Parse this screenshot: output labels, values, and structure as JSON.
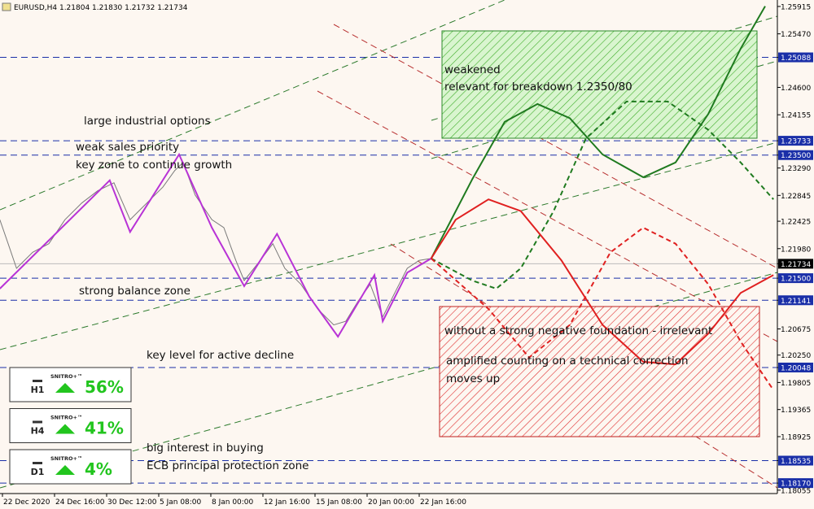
{
  "chart_data": {
    "type": "line",
    "title": "EURUSD,H4  1.21804 1.21830 1.21732 1.21734",
    "xlim": [
      -0.047,
      14.875
    ],
    "xticks": [
      {
        "value": 0,
        "label": "22 Dec 2020"
      },
      {
        "value": 1,
        "label": "24 Dec 16:00"
      },
      {
        "value": 2,
        "label": "30 Dec 12:00"
      },
      {
        "value": 3,
        "label": "5 Jan 08:00"
      },
      {
        "value": 4,
        "label": "8 Jan 00:00"
      },
      {
        "value": 5,
        "label": "12 Jan 16:00"
      },
      {
        "value": 6,
        "label": "15 Jan 08:00"
      },
      {
        "value": 7,
        "label": "20 Jan 00:00"
      },
      {
        "value": 8,
        "label": "22 Jan 16:00"
      }
    ],
    "ylim": [
      1.18,
      1.2602
    ],
    "yticks": [
      1.25915,
      {
        "value": 1.2547,
        "label": "1.25470"
      },
      1.25088,
      {
        "value": 1.246,
        "label": "1.24600"
      },
      1.24155,
      1.23733,
      {
        "value": 1.235,
        "label": "1.23500"
      },
      {
        "value": 1.2329,
        "label": "1.23290"
      },
      1.22845,
      1.22425,
      {
        "value": 1.2198,
        "label": "1.21980"
      },
      1.21734,
      {
        "value": 1.215,
        "label": "1.21500"
      },
      1.21141,
      1.20675,
      {
        "value": 1.2025,
        "label": "1.20250"
      },
      1.20048,
      1.19805,
      1.19365,
      1.18925,
      1.18535,
      {
        "value": 1.1817,
        "label": "1.18170"
      },
      1.18055
    ],
    "levels": [
      1.25088,
      1.23733,
      1.235,
      1.215,
      1.21141,
      1.20048,
      1.18535,
      1.1817
    ],
    "current": 1.21734,
    "series": [
      {
        "color": "#7a7a7a",
        "width": 1,
        "dash": false,
        "x": [
          -0.05,
          0.11,
          0.27,
          0.58,
          0.89,
          1.2,
          1.52,
          1.83,
          2.14,
          2.45,
          2.77,
          3.08,
          3.31,
          3.47,
          3.7,
          4.02,
          4.25,
          4.48,
          4.64,
          4.95,
          5.19,
          5.42,
          5.73,
          6.05,
          6.36,
          6.59,
          6.83,
          7.06,
          7.3,
          7.53,
          7.77,
          8.0,
          8.23
        ],
        "values": [
          1.2245,
          1.2206,
          1.2166,
          1.2192,
          1.2206,
          1.2245,
          1.2272,
          1.2292,
          1.2305,
          1.2245,
          1.2272,
          1.2298,
          1.2325,
          1.2338,
          1.2285,
          1.2245,
          1.2232,
          1.2179,
          1.2146,
          1.2179,
          1.2206,
          1.2166,
          1.214,
          1.21,
          1.2074,
          1.208,
          1.2113,
          1.214,
          1.2087,
          1.2126,
          1.2166,
          1.2179,
          1.2182
        ]
      },
      {
        "color": "#b833d6",
        "width": 2,
        "dash": false,
        "x": [
          -0.05,
          2.06,
          2.45,
          3.39,
          4.02,
          4.64,
          5.27,
          5.89,
          6.44,
          7.14,
          7.3,
          7.77,
          8.23
        ],
        "values": [
          1.2133,
          1.2309,
          1.2225,
          1.2351,
          1.2232,
          1.2137,
          1.2222,
          1.212,
          1.2055,
          1.2155,
          1.208,
          1.2159,
          1.2182
        ]
      },
      {
        "color": "#1f7a1f",
        "width": 2,
        "dash": false,
        "x": [
          8.23,
          9.02,
          9.64,
          10.27,
          10.89,
          11.52,
          12.3,
          12.92,
          13.55,
          14.17,
          14.64
        ],
        "values": [
          1.2182,
          1.2311,
          1.2404,
          1.2433,
          1.241,
          1.2351,
          1.2314,
          1.2338,
          1.2417,
          1.2523,
          1.2592
        ]
      },
      {
        "color": "#1f7a1f",
        "width": 2,
        "dash": true,
        "x": [
          8.23,
          9.02,
          9.48,
          9.95,
          10.58,
          11.2,
          11.98,
          12.77,
          13.55,
          14.17,
          14.8
        ],
        "values": [
          1.2182,
          1.2146,
          1.2133,
          1.2166,
          1.2259,
          1.2377,
          1.2437,
          1.2437,
          1.2391,
          1.2338,
          1.2278
        ]
      },
      {
        "color": "#e02020",
        "width": 2,
        "dash": false,
        "x": [
          8.23,
          8.7,
          9.33,
          9.95,
          10.73,
          11.52,
          12.3,
          12.92,
          13.55,
          14.17,
          14.8
        ],
        "values": [
          1.2182,
          1.2245,
          1.2278,
          1.2259,
          1.2179,
          1.2074,
          1.2014,
          1.201,
          1.206,
          1.2126,
          1.2155
        ]
      },
      {
        "color": "#e02020",
        "width": 2,
        "dash": true,
        "x": [
          8.23,
          9.33,
          10.11,
          10.89,
          11.67,
          12.3,
          12.92,
          13.55,
          14.17,
          14.8
        ],
        "values": [
          1.2182,
          1.21,
          1.2021,
          1.2074,
          1.2192,
          1.2232,
          1.2206,
          1.214,
          1.2047,
          1.1968
        ]
      }
    ],
    "annotations": [
      "weakened",
      "relevant for breakdown 1.2350/80",
      "large industrial options",
      "weak sales priority",
      "key zone to continue growth",
      "strong balance zone",
      "without a strong negative foundation - irrelevant",
      "amplified counting on a technical correction",
      "moves up",
      "key level for active decline",
      "big interest in buying",
      "ECB principal protection zone"
    ],
    "signals": [
      {
        "name": "SNITRO+™",
        "timeframe": "H1",
        "value": 56,
        "value_label": "56%"
      },
      {
        "name": "SNITRO+™",
        "timeframe": "H4",
        "value": 41,
        "value_label": "41%"
      },
      {
        "name": "SNITRO+™",
        "timeframe": "D1",
        "value": 4,
        "value_label": "4%"
      }
    ]
  }
}
